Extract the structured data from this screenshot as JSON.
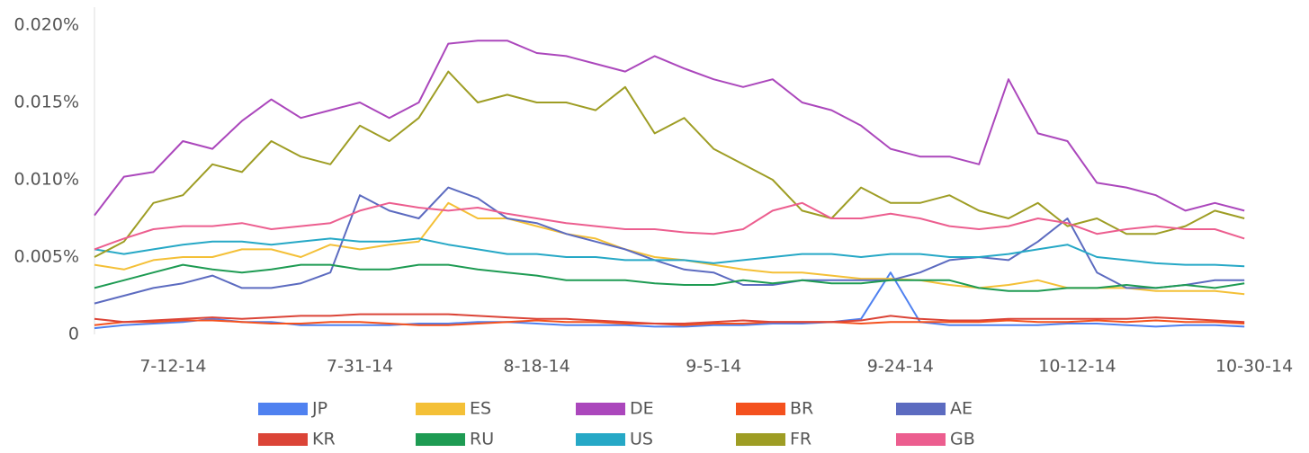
{
  "chart_data": {
    "type": "line",
    "x": [
      "7-4-14",
      "7-7-14",
      "7-10-14",
      "7-13-14",
      "7-16-14",
      "7-19-14",
      "7-22-14",
      "7-25-14",
      "7-28-14",
      "7-31-14",
      "8-3-14",
      "8-6-14",
      "8-9-14",
      "8-12-14",
      "8-15-14",
      "8-18-14",
      "8-21-14",
      "8-24-14",
      "8-27-14",
      "8-30-14",
      "9-2-14",
      "9-5-14",
      "9-8-14",
      "9-11-14",
      "9-14-14",
      "9-17-14",
      "9-20-14",
      "9-23-14",
      "9-26-14",
      "9-29-14",
      "10-2-14",
      "10-5-14",
      "10-8-14",
      "10-11-14",
      "10-14-14",
      "10-17-14",
      "10-20-14",
      "10-23-14",
      "10-26-14",
      "10-29-14"
    ],
    "xlim": [
      "7-4-14",
      "10-31-14"
    ],
    "xticks": [
      "7-12-14",
      "7-31-14",
      "8-18-14",
      "9-5-14",
      "9-24-14",
      "10-12-14",
      "10-30-14"
    ],
    "ylim": [
      0,
      0.02
    ],
    "yticks": [
      0,
      {
        "value": 0.005,
        "label": "0.005%"
      },
      {
        "value": 0.01,
        "label": "0.010%"
      },
      {
        "value": 0.015,
        "label": "0.015%"
      },
      {
        "value": 0.02,
        "label": "0.020%"
      }
    ],
    "grid": false,
    "legend": "bottom",
    "series": [
      {
        "name": "JP",
        "color": "#4f81f0",
        "values": [
          0.0004,
          0.0006,
          0.0007,
          0.0008,
          0.001,
          0.0008,
          0.0008,
          0.0006,
          0.0006,
          0.0006,
          0.0006,
          0.0007,
          0.0007,
          0.0008,
          0.0008,
          0.0007,
          0.0006,
          0.0006,
          0.0006,
          0.0005,
          0.0005,
          0.0006,
          0.0006,
          0.0007,
          0.0007,
          0.0008,
          0.001,
          0.004,
          0.0008,
          0.0006,
          0.0006,
          0.0006,
          0.0006,
          0.0007,
          0.0007,
          0.0006,
          0.0005,
          0.0006,
          0.0006,
          0.0005
        ]
      },
      {
        "name": "ES",
        "color": "#f4c037",
        "values": [
          0.0045,
          0.0042,
          0.0048,
          0.005,
          0.005,
          0.0055,
          0.0055,
          0.005,
          0.0058,
          0.0055,
          0.0058,
          0.006,
          0.0085,
          0.0075,
          0.0075,
          0.007,
          0.0065,
          0.0062,
          0.0055,
          0.005,
          0.0048,
          0.0045,
          0.0042,
          0.004,
          0.004,
          0.0038,
          0.0036,
          0.0036,
          0.0035,
          0.0032,
          0.003,
          0.0032,
          0.0035,
          0.003,
          0.003,
          0.003,
          0.0028,
          0.0028,
          0.0028,
          0.0026
        ]
      },
      {
        "name": "DE",
        "color": "#ab47bc",
        "values": [
          0.0077,
          0.0102,
          0.0105,
          0.0125,
          0.012,
          0.0138,
          0.0152,
          0.014,
          0.0145,
          0.015,
          0.014,
          0.015,
          0.0188,
          0.019,
          0.019,
          0.0182,
          0.018,
          0.0175,
          0.017,
          0.018,
          0.0172,
          0.0165,
          0.016,
          0.0165,
          0.015,
          0.0145,
          0.0135,
          0.012,
          0.0115,
          0.0115,
          0.011,
          0.0165,
          0.013,
          0.0125,
          0.0098,
          0.0095,
          0.009,
          0.008,
          0.0085,
          0.008
        ]
      },
      {
        "name": "BR",
        "color": "#f4511e",
        "values": [
          0.0006,
          0.0008,
          0.0008,
          0.0009,
          0.0009,
          0.0008,
          0.0007,
          0.0007,
          0.0008,
          0.0008,
          0.0007,
          0.0006,
          0.0006,
          0.0007,
          0.0008,
          0.0009,
          0.0008,
          0.0008,
          0.0007,
          0.0007,
          0.0006,
          0.0007,
          0.0007,
          0.0008,
          0.0008,
          0.0008,
          0.0007,
          0.0008,
          0.0008,
          0.0008,
          0.0008,
          0.0009,
          0.0008,
          0.0008,
          0.0009,
          0.0008,
          0.0009,
          0.0008,
          0.0008,
          0.0007
        ]
      },
      {
        "name": "AE",
        "color": "#5c6bc0",
        "values": [
          0.002,
          0.0025,
          0.003,
          0.0033,
          0.0038,
          0.003,
          0.003,
          0.0033,
          0.004,
          0.009,
          0.008,
          0.0075,
          0.0095,
          0.0088,
          0.0075,
          0.0072,
          0.0065,
          0.006,
          0.0055,
          0.0048,
          0.0042,
          0.004,
          0.0032,
          0.0032,
          0.0035,
          0.0035,
          0.0035,
          0.0035,
          0.004,
          0.0048,
          0.005,
          0.0048,
          0.006,
          0.0075,
          0.004,
          0.003,
          0.003,
          0.0032,
          0.0035,
          0.0035
        ]
      },
      {
        "name": "KR",
        "color": "#db4437",
        "values": [
          0.001,
          0.0008,
          0.0009,
          0.001,
          0.0011,
          0.001,
          0.0011,
          0.0012,
          0.0012,
          0.0013,
          0.0013,
          0.0013,
          0.0013,
          0.0012,
          0.0011,
          0.001,
          0.001,
          0.0009,
          0.0008,
          0.0007,
          0.0007,
          0.0008,
          0.0009,
          0.0008,
          0.0008,
          0.0008,
          0.0009,
          0.0012,
          0.001,
          0.0009,
          0.0009,
          0.001,
          0.001,
          0.001,
          0.001,
          0.001,
          0.0011,
          0.001,
          0.0009,
          0.0008
        ]
      },
      {
        "name": "RU",
        "color": "#1e9b53",
        "values": [
          0.003,
          0.0035,
          0.004,
          0.0045,
          0.0042,
          0.004,
          0.0042,
          0.0045,
          0.0045,
          0.0042,
          0.0042,
          0.0045,
          0.0045,
          0.0042,
          0.004,
          0.0038,
          0.0035,
          0.0035,
          0.0035,
          0.0033,
          0.0032,
          0.0032,
          0.0035,
          0.0033,
          0.0035,
          0.0033,
          0.0033,
          0.0035,
          0.0035,
          0.0035,
          0.003,
          0.0028,
          0.0028,
          0.003,
          0.003,
          0.0032,
          0.003,
          0.0032,
          0.003,
          0.0033
        ]
      },
      {
        "name": "US",
        "color": "#26a8c6",
        "values": [
          0.0055,
          0.0052,
          0.0055,
          0.0058,
          0.006,
          0.006,
          0.0058,
          0.006,
          0.0062,
          0.006,
          0.006,
          0.0062,
          0.0058,
          0.0055,
          0.0052,
          0.0052,
          0.005,
          0.005,
          0.0048,
          0.0048,
          0.0048,
          0.0046,
          0.0048,
          0.005,
          0.0052,
          0.0052,
          0.005,
          0.0052,
          0.0052,
          0.005,
          0.005,
          0.0052,
          0.0055,
          0.0058,
          0.005,
          0.0048,
          0.0046,
          0.0045,
          0.0045,
          0.0044
        ]
      },
      {
        "name": "FR",
        "color": "#9e9d24",
        "values": [
          0.005,
          0.006,
          0.0085,
          0.009,
          0.011,
          0.0105,
          0.0125,
          0.0115,
          0.011,
          0.0135,
          0.0125,
          0.014,
          0.017,
          0.015,
          0.0155,
          0.015,
          0.015,
          0.0145,
          0.016,
          0.013,
          0.014,
          0.012,
          0.011,
          0.01,
          0.008,
          0.0075,
          0.0095,
          0.0085,
          0.0085,
          0.009,
          0.008,
          0.0075,
          0.0085,
          0.007,
          0.0075,
          0.0065,
          0.0065,
          0.007,
          0.008,
          0.0075
        ]
      },
      {
        "name": "GB",
        "color": "#ec5e8f",
        "values": [
          0.0055,
          0.0062,
          0.0068,
          0.007,
          0.007,
          0.0072,
          0.0068,
          0.007,
          0.0072,
          0.008,
          0.0085,
          0.0082,
          0.008,
          0.0082,
          0.0078,
          0.0075,
          0.0072,
          0.007,
          0.0068,
          0.0068,
          0.0066,
          0.0065,
          0.0068,
          0.008,
          0.0085,
          0.0075,
          0.0075,
          0.0078,
          0.0075,
          0.007,
          0.0068,
          0.007,
          0.0075,
          0.0072,
          0.0065,
          0.0068,
          0.007,
          0.0068,
          0.0068,
          0.0062
        ]
      }
    ]
  }
}
